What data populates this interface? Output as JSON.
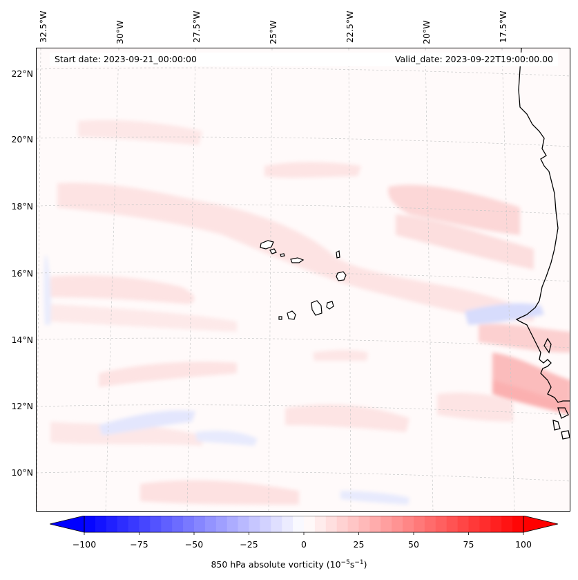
{
  "map": {
    "start_label": "Start date: 2023-09-21_00:00:00",
    "valid_label": "Valid_date: 2023-09-22T19:00:00.00",
    "lon_labels": [
      "32.5°W",
      "30°W",
      "27.5°W",
      "25°W",
      "22.5°W",
      "20°W",
      "17.5°W"
    ],
    "lat_labels": [
      "22°N",
      "20°N",
      "18°N",
      "16°N",
      "14°N",
      "12°N",
      "10°N"
    ],
    "extent": {
      "lon_min": -32.8,
      "lon_max": -15.8,
      "lat_min": 8.9,
      "lat_max": 22.8
    },
    "colors": {
      "coast": "#000000",
      "grid": "#c8c8c8",
      "background": "#fffafa"
    }
  },
  "colorbar": {
    "label": "850 hPa absolute vorticity (10",
    "label_exp": "−5",
    "label_mid": "s",
    "label_exp2": "−1",
    "label_end": ")",
    "ticks": [
      "−100",
      "−75",
      "−50",
      "−25",
      "0",
      "25",
      "50",
      "75",
      "100"
    ],
    "min": -100,
    "max": 100,
    "step": 5
  }
}
